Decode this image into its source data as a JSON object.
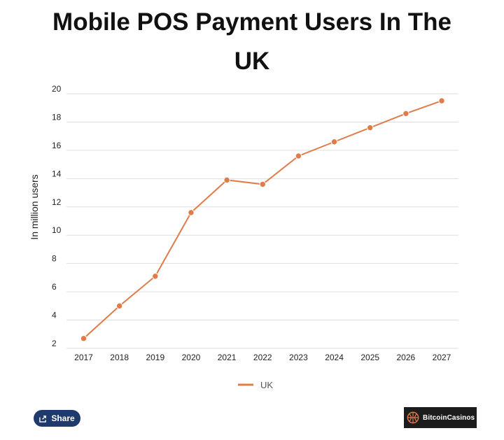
{
  "title_line1": "Mobile POS Payment Users In The",
  "title_line2": "UK",
  "share_label": "Share",
  "brand_text": "BitcoinCasinos",
  "colors": {
    "series": "#e07b4a",
    "brand_icon": "#e07b4a",
    "share_bg": "#1f3a6d"
  },
  "chart_data": {
    "type": "line",
    "title": "Mobile POS Payment Users In The UK",
    "xlabel": "",
    "ylabel": "In million users",
    "categories": [
      "2017",
      "2018",
      "2019",
      "2020",
      "2021",
      "2022",
      "2023",
      "2024",
      "2025",
      "2026",
      "2027"
    ],
    "series": [
      {
        "name": "UK",
        "values": [
          2.7,
          5.0,
          7.1,
          11.6,
          13.9,
          13.6,
          15.6,
          16.6,
          17.6,
          18.6,
          19.5
        ]
      }
    ],
    "ylim": [
      2,
      20
    ],
    "yticks": [
      2,
      4,
      6,
      8,
      10,
      12,
      14,
      16,
      18,
      20
    ],
    "grid": true,
    "legend_position": "bottom"
  }
}
